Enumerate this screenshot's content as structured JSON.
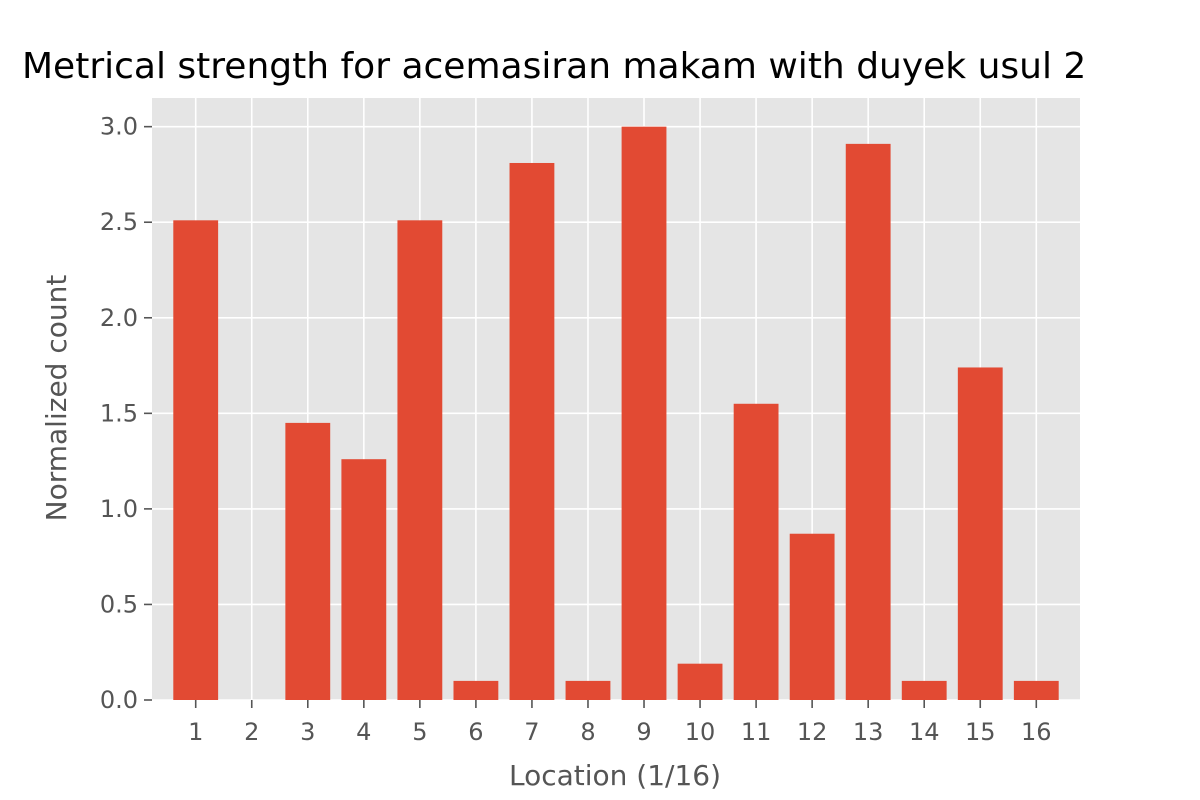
{
  "chart_data": {
    "type": "bar",
    "title": "Metrical strength for acemasiran makam with duyek usul 2",
    "xlabel": "Location (1/16)",
    "ylabel": "Normalized count",
    "categories": [
      "1",
      "2",
      "3",
      "4",
      "5",
      "6",
      "7",
      "8",
      "9",
      "10",
      "11",
      "12",
      "13",
      "14",
      "15",
      "16"
    ],
    "values": [
      2.51,
      0.0,
      1.45,
      1.26,
      2.51,
      0.1,
      2.81,
      0.1,
      3.0,
      0.19,
      1.55,
      0.87,
      2.91,
      0.1,
      1.74,
      0.1
    ],
    "ylim": [
      0,
      3.15
    ],
    "yticks": [
      "0.0",
      "0.5",
      "1.0",
      "1.5",
      "2.0",
      "2.5",
      "3.0"
    ],
    "grid": true,
    "style": "ggplot",
    "colors": {
      "bar": "#E24A33",
      "panel": "#E5E5E5",
      "grid": "#FFFFFF",
      "tick_text": "#555555",
      "tick_mark": "#555555",
      "title_text": "#000000"
    }
  }
}
